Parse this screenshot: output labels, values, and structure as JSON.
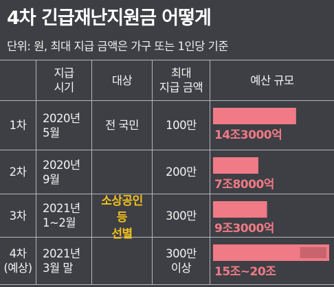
{
  "title": "4차 긴급재난지원금 어떻게",
  "unit_note": "단위: 원, 최대 지급 금액은 가구 또는 1인당 기준",
  "table": {
    "headers": {
      "timing": "지급\n시기",
      "target": "대상",
      "max_amount": "최대\n지급 금액",
      "budget": "예산 규모"
    },
    "rows": [
      {
        "round": "1차",
        "timing": "2020년\n5월",
        "max_amount": "100만"
      },
      {
        "round": "2차",
        "timing": "2020년\n9월",
        "max_amount": "200만"
      },
      {
        "round": "3차",
        "timing": "2021년\n1~2월",
        "max_amount": "300만"
      },
      {
        "round": "4차\n(예상)",
        "timing": "2021년\n3월 말",
        "max_amount": "300만\n이상"
      }
    ],
    "target_row1": "전 국민",
    "target_rows234": "소상공인\n등\n선별"
  },
  "colors": {
    "background": "#3d3f44",
    "bar": "#f07a86",
    "bar_range": "#c9636e",
    "highlight": "#f2c01c"
  },
  "chart_data": {
    "type": "bar",
    "orientation": "horizontal",
    "title": "예산 규모",
    "categories": [
      "1차",
      "2차",
      "3차",
      "4차(예상)"
    ],
    "values": [
      14.3,
      7.8,
      9.3,
      20
    ],
    "range_low": [
      null,
      null,
      null,
      15
    ],
    "value_labels": [
      "14조3000억",
      "7조8000억",
      "9조3000억",
      "15조~20조"
    ],
    "unit": "조원",
    "xlim": [
      0,
      20
    ]
  }
}
